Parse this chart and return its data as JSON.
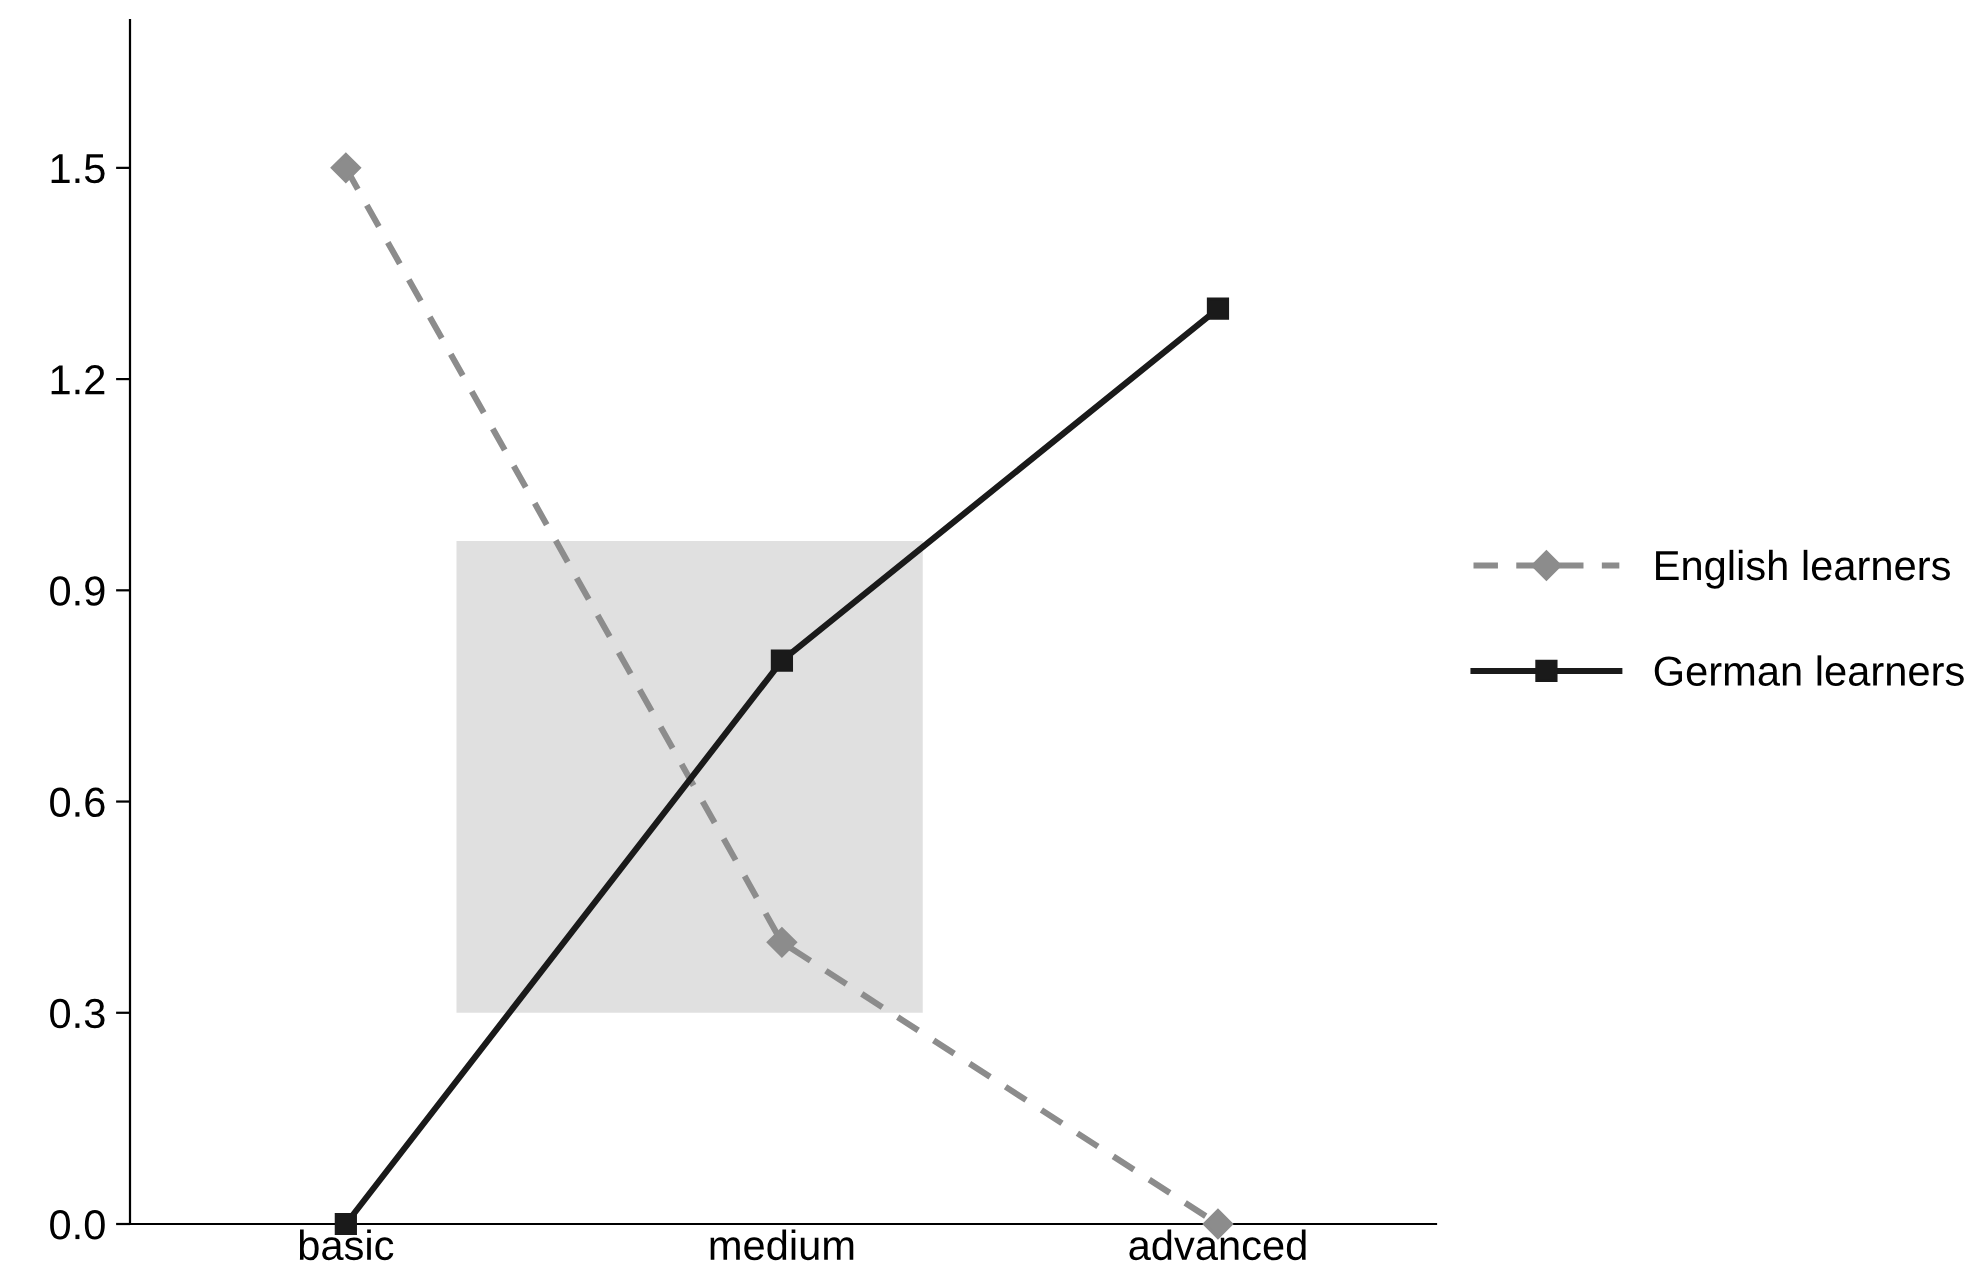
{
  "chart_data": {
    "type": "line",
    "categories": [
      "basic",
      "medium",
      "advanced"
    ],
    "series": [
      {
        "name": "English learners",
        "color": "#8c8c8c",
        "values": [
          1.5,
          0.4,
          0.0
        ],
        "marker": "diamond",
        "line_style": "dashed"
      },
      {
        "name": "German learners",
        "color": "#1a1a1a",
        "values": [
          0.0,
          0.8,
          1.3
        ],
        "marker": "square",
        "line_style": "solid"
      }
    ],
    "ylim": [
      0,
      1.71
    ],
    "yticks": [
      {
        "value": 0,
        "label": "0.0"
      },
      {
        "value": 0.3,
        "label": "0.3"
      },
      {
        "value": 0.6,
        "label": "0.6"
      },
      {
        "value": 0.9,
        "label": "0.9"
      },
      {
        "value": 1.2,
        "label": "1.2"
      },
      {
        "value": 1.5,
        "label": "1.5"
      }
    ],
    "bands": [
      {
        "axis": "y",
        "from": 0.3,
        "to": 0.97,
        "color": "#e0e0e0"
      }
    ],
    "grid": false,
    "legend": "right"
  }
}
